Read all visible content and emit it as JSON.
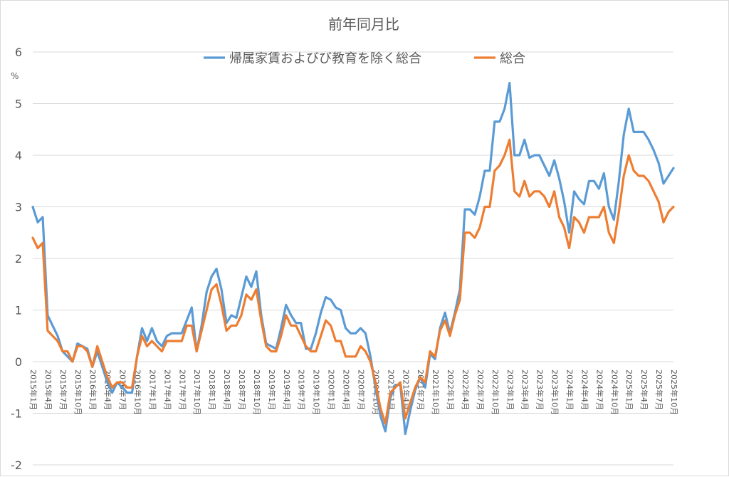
{
  "chart_data": {
    "type": "line",
    "title": "前年同月比",
    "unit_label": "%",
    "ylim": [
      -2,
      6
    ],
    "yticks": [
      "-2",
      "-1",
      "0",
      "1",
      "2",
      "3",
      "4",
      "5",
      "6"
    ],
    "grid": true,
    "legend_position": "top",
    "x": [
      "2015年1月",
      "2015年2月",
      "2015年3月",
      "2015年4月",
      "2015年5月",
      "2015年6月",
      "2015年7月",
      "2015年8月",
      "2015年9月",
      "2015年10月",
      "2015年11月",
      "2015年12月",
      "2016年1月",
      "2016年2月",
      "2016年3月",
      "2016年4月",
      "2016年5月",
      "2016年6月",
      "2016年7月",
      "2016年8月",
      "2016年9月",
      "2016年10月",
      "2016年11月",
      "2016年12月",
      "2017年1月",
      "2017年2月",
      "2017年3月",
      "2017年4月",
      "2017年5月",
      "2017年6月",
      "2017年7月",
      "2017年8月",
      "2017年9月",
      "2017年10月",
      "2017年11月",
      "2017年12月",
      "2018年1月",
      "2018年2月",
      "2018年3月",
      "2018年4月",
      "2018年5月",
      "2018年6月",
      "2018年7月",
      "2018年8月",
      "2018年9月",
      "2018年10月",
      "2018年11月",
      "2018年12月",
      "2019年1月",
      "2019年2月",
      "2019年3月",
      "2019年4月",
      "2019年5月",
      "2019年6月",
      "2019年7月",
      "2019年8月",
      "2019年9月",
      "2019年10月",
      "2019年11月",
      "2019年12月",
      "2020年1月",
      "2020年2月",
      "2020年3月",
      "2020年4月",
      "2020年5月",
      "2020年6月",
      "2020年7月",
      "2020年8月",
      "2020年9月",
      "2020年10月",
      "2020年11月",
      "2020年12月",
      "2021年1月",
      "2021年2月",
      "2021年3月",
      "2021年4月",
      "2021年5月",
      "2021年6月",
      "2021年7月",
      "2021年8月",
      "2021年9月",
      "2021年10月",
      "2021年11月",
      "2021年12月",
      "2022年1月",
      "2022年2月",
      "2022年3月",
      "2022年4月",
      "2022年5月",
      "2022年6月",
      "2022年7月",
      "2022年8月",
      "2022年9月",
      "2022年10月",
      "2022年11月",
      "2022年12月",
      "2023年1月",
      "2023年2月",
      "2023年3月",
      "2023年4月",
      "2023年5月",
      "2023年6月",
      "2023年7月",
      "2023年8月",
      "2023年9月",
      "2023年10月",
      "2023年11月",
      "2023年12月",
      "2024年1月",
      "2024年2月",
      "2024年3月",
      "2024年4月",
      "2024年5月",
      "2024年6月",
      "2024年7月",
      "2024年8月",
      "2024年9月",
      "2024年10月",
      "2024年11月",
      "2024年12月",
      "2025年1月",
      "2025年2月",
      "2025年3月",
      "2025年4月",
      "2025年5月",
      "2025年6月",
      "2025年7月",
      "2025年8月",
      "2025年9月",
      "2025年10月"
    ],
    "tick_every": 3,
    "series": [
      {
        "name": "帰属家賃およびび教育を除く総合",
        "color": "#5b9bd5",
        "values": [
          3.0,
          2.7,
          2.8,
          0.9,
          0.7,
          0.5,
          0.2,
          0.1,
          0.0,
          0.35,
          0.3,
          0.25,
          -0.1,
          0.2,
          -0.1,
          -0.4,
          -0.6,
          -0.4,
          -0.5,
          -0.6,
          -0.6,
          0.1,
          0.65,
          0.4,
          0.65,
          0.4,
          0.3,
          0.5,
          0.55,
          0.55,
          0.55,
          0.8,
          1.05,
          0.2,
          0.7,
          1.35,
          1.65,
          1.8,
          1.4,
          0.75,
          0.9,
          0.85,
          1.25,
          1.65,
          1.45,
          1.75,
          0.9,
          0.35,
          0.3,
          0.25,
          0.65,
          1.1,
          0.9,
          0.75,
          0.75,
          0.25,
          0.25,
          0.55,
          0.95,
          1.25,
          1.2,
          1.05,
          1.0,
          0.65,
          0.55,
          0.55,
          0.65,
          0.55,
          0.1,
          -0.5,
          -1.05,
          -1.35,
          -0.7,
          -0.45,
          -0.45,
          -1.4,
          -0.95,
          -0.55,
          -0.3,
          -0.5,
          0.15,
          0.05,
          0.65,
          0.95,
          0.55,
          0.95,
          1.4,
          2.95,
          2.95,
          2.85,
          3.2,
          3.7,
          3.7,
          4.65,
          4.65,
          4.9,
          5.4,
          4.0,
          4.0,
          4.3,
          3.95,
          4.0,
          4.0,
          3.8,
          3.6,
          3.9,
          3.55,
          3.1,
          2.5,
          3.3,
          3.15,
          3.05,
          3.5,
          3.5,
          3.35,
          3.65,
          3.0,
          2.75,
          3.5,
          4.4,
          4.9,
          4.45,
          4.45,
          4.45,
          4.3,
          4.1,
          3.85,
          3.45,
          3.6,
          3.75
        ]
      },
      {
        "name": "総合",
        "color": "#ed7d31",
        "values": [
          2.4,
          2.2,
          2.3,
          0.6,
          0.5,
          0.4,
          0.2,
          0.2,
          0.0,
          0.3,
          0.3,
          0.2,
          -0.1,
          0.3,
          0.0,
          -0.3,
          -0.5,
          -0.4,
          -0.4,
          -0.5,
          -0.5,
          0.1,
          0.5,
          0.3,
          0.4,
          0.3,
          0.2,
          0.4,
          0.4,
          0.4,
          0.4,
          0.7,
          0.7,
          0.2,
          0.6,
          1.0,
          1.4,
          1.5,
          1.1,
          0.6,
          0.7,
          0.7,
          0.9,
          1.3,
          1.2,
          1.4,
          0.8,
          0.3,
          0.2,
          0.2,
          0.5,
          0.9,
          0.7,
          0.7,
          0.5,
          0.3,
          0.2,
          0.2,
          0.5,
          0.8,
          0.7,
          0.4,
          0.4,
          0.1,
          0.1,
          0.1,
          0.3,
          0.2,
          0.0,
          -0.4,
          -0.9,
          -1.2,
          -0.6,
          -0.5,
          -0.4,
          -1.1,
          -0.8,
          -0.5,
          -0.3,
          -0.4,
          0.2,
          0.1,
          0.6,
          0.8,
          0.5,
          0.9,
          1.2,
          2.5,
          2.5,
          2.4,
          2.6,
          3.0,
          3.0,
          3.7,
          3.8,
          4.0,
          4.3,
          3.3,
          3.2,
          3.5,
          3.2,
          3.3,
          3.3,
          3.2,
          3.0,
          3.3,
          2.8,
          2.6,
          2.2,
          2.8,
          2.7,
          2.5,
          2.8,
          2.8,
          2.8,
          3.0,
          2.5,
          2.3,
          2.9,
          3.6,
          4.0,
          3.7,
          3.6,
          3.6,
          3.5,
          3.3,
          3.1,
          2.7,
          2.9,
          3.0
        ]
      }
    ]
  }
}
